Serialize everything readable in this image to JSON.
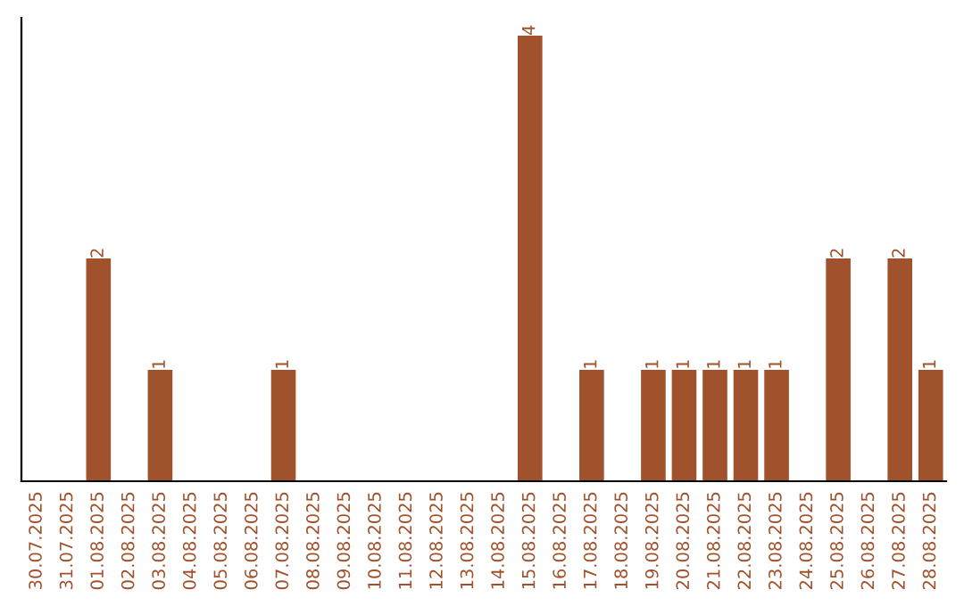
{
  "chart_data": {
    "type": "bar",
    "categories": [
      "30.07.2025",
      "31.07.2025",
      "01.08.2025",
      "02.08.2025",
      "03.08.2025",
      "04.08.2025",
      "05.08.2025",
      "06.08.2025",
      "07.08.2025",
      "08.08.2025",
      "09.08.2025",
      "10.08.2025",
      "11.08.2025",
      "12.08.2025",
      "13.08.2025",
      "14.08.2025",
      "15.08.2025",
      "16.08.2025",
      "17.08.2025",
      "18.08.2025",
      "19.08.2025",
      "20.08.2025",
      "21.08.2025",
      "22.08.2025",
      "23.08.2025",
      "24.08.2025",
      "25.08.2025",
      "26.08.2025",
      "27.08.2025",
      "28.08.2025"
    ],
    "values": [
      0,
      0,
      2,
      0,
      1,
      0,
      0,
      0,
      1,
      0,
      0,
      0,
      0,
      0,
      0,
      0,
      4,
      0,
      1,
      0,
      1,
      1,
      1,
      1,
      1,
      0,
      2,
      0,
      2,
      1
    ],
    "value_labels": [
      null,
      null,
      "2",
      null,
      "1",
      null,
      null,
      null,
      "1",
      null,
      null,
      null,
      null,
      null,
      null,
      null,
      "4",
      null,
      "1",
      null,
      "1",
      "1",
      "1",
      "1",
      "1",
      null,
      "2",
      null,
      "2",
      "1"
    ],
    "color": "#a0522d",
    "tick_labels": "x",
    "grid": false,
    "legend": false
  }
}
